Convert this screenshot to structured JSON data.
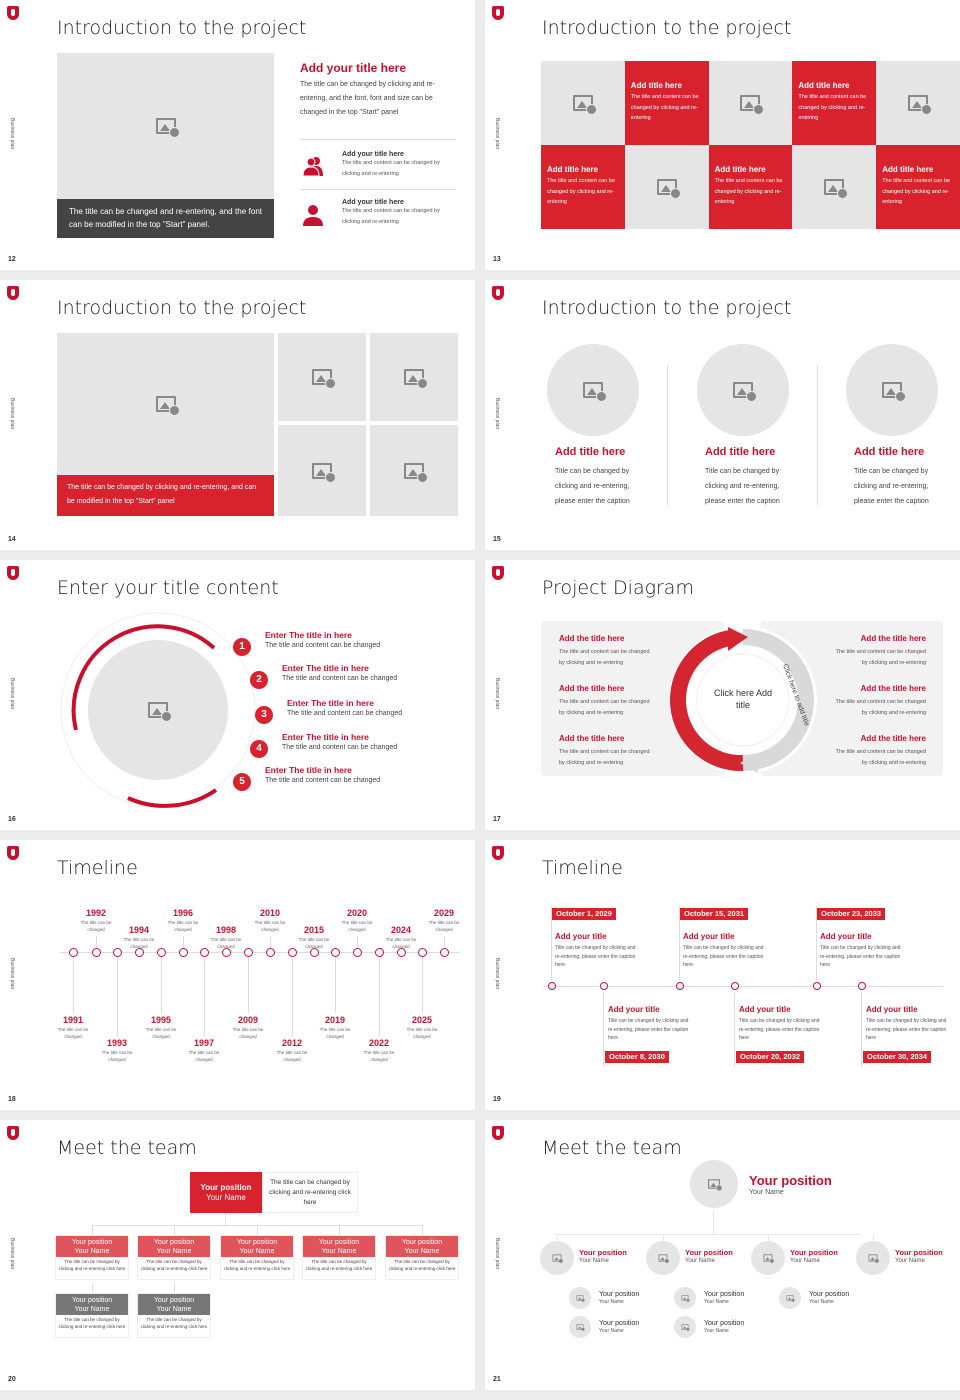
{
  "common": {
    "side_label": "Business plan",
    "accent": "#c8102e",
    "logo": "shield-logo"
  },
  "s12": {
    "page": "12",
    "title": "Introduction to the project",
    "caption": "The title can be changed and re-entering, and the font can be modified in the top \"Start\" panel.",
    "heading": "Add your title here",
    "body": "The title can be changed by clicking and re-entering, and the font, font and size can be changed in the top \"Start\" panel",
    "items": [
      {
        "title": "Add your title here",
        "body": "The title and content can be changed by clicking and re-entering",
        "icon": "people-icon"
      },
      {
        "title": "Add your title here",
        "body": "The title and content can be changed by clicking and re-entering",
        "icon": "person-icon"
      }
    ]
  },
  "s13": {
    "page": "13",
    "title": "Introduction to the project",
    "card_title": "Add title here",
    "card_body": "The title and content can be changed by clicking and re-entering"
  },
  "s14": {
    "page": "14",
    "title": "Introduction to the project",
    "caption": "The title can be changed by clicking and re-entering, and can be modified in the top \"Start\" panel"
  },
  "s15": {
    "page": "15",
    "title": "Introduction to the project",
    "items": [
      {
        "title": "Add title here",
        "body": "Title can be changed by clicking and re-entering, please enter the caption"
      },
      {
        "title": "Add title here",
        "body": "Title can be changed by clicking and re-entering, please enter the caption"
      },
      {
        "title": "Add title here",
        "body": "Title can be changed by clicking and re-entering, please enter the caption"
      }
    ]
  },
  "s16": {
    "page": "16",
    "title": "Enter your title content",
    "items": [
      {
        "n": "1",
        "title": "Enter The title in here",
        "body": "The title and content can be changed"
      },
      {
        "n": "2",
        "title": "Enter The title in here",
        "body": "The title and content can be changed"
      },
      {
        "n": "3",
        "title": "Enter The title in here",
        "body": "The title and content can be changed"
      },
      {
        "n": "4",
        "title": "Enter The title in here",
        "body": "The title and content can be changed"
      },
      {
        "n": "5",
        "title": "Enter The title in here",
        "body": "The title and content can be changed"
      }
    ]
  },
  "s17": {
    "page": "17",
    "title": "Project Diagram",
    "center": "Click here Add title",
    "arrow_label": "Click here to add title",
    "item_title": "Add the title here",
    "item_body": "The title and content can be changed by clicking and re-entering"
  },
  "s18": {
    "page": "18",
    "title": "Timeline",
    "caption": "The title can be changed",
    "years": [
      "1991",
      "1992",
      "1993",
      "1994",
      "1995",
      "1996",
      "1997",
      "1998",
      "2009",
      "2010",
      "2012",
      "2015",
      "2019",
      "2020",
      "2022",
      "2024",
      "2025",
      "2029"
    ]
  },
  "s19": {
    "page": "19",
    "title": "Timeline",
    "item_title": "Add your title",
    "item_body": "Title can be changed by clicking and re-entering, please enter the caption here",
    "dates_top": [
      "October 1, 2029",
      "October 15, 2031",
      "October 23, 2033"
    ],
    "dates_bottom": [
      "October 8, 2030",
      "October 20, 2032",
      "October 30, 2034"
    ]
  },
  "s20": {
    "page": "20",
    "title": "Meet the team",
    "position": "Your position",
    "name": "Your Name",
    "desc": "The title can be changed by clicking and re-entering click here"
  },
  "s21": {
    "page": "21",
    "title": "Meet the team",
    "position": "Your position",
    "name": "Your Name"
  }
}
